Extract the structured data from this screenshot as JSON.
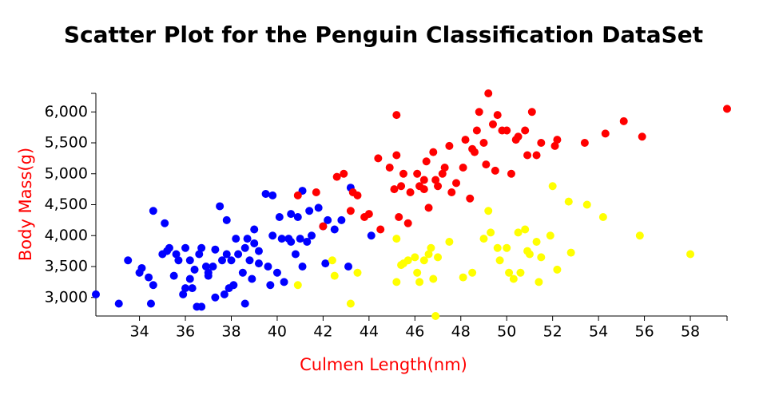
{
  "chart_data": {
    "type": "scatter",
    "title": "Scatter Plot for the Penguin Classification DataSet",
    "x_label": "Culmen Length(nm)",
    "y_label": "Body Mass(g)",
    "label_color": "#ff0000",
    "xlim": [
      32.1,
      59.6
    ],
    "ylim": [
      2700,
      6300
    ],
    "xticks": [
      34,
      36,
      38,
      40,
      42,
      44,
      46,
      48,
      50,
      52,
      54,
      56,
      58
    ],
    "yticks": [
      {
        "value": 3000,
        "label": "3,000"
      },
      {
        "value": 3500,
        "label": "3,500"
      },
      {
        "value": 4000,
        "label": "4,000"
      },
      {
        "value": 4500,
        "label": "4,500"
      },
      {
        "value": 5000,
        "label": "5,000"
      },
      {
        "value": 5500,
        "label": "5,500"
      },
      {
        "value": 6000,
        "label": "6,000"
      }
    ],
    "grid": false,
    "series": [
      {
        "color": "#0000ff",
        "x": [
          32.1,
          33.1,
          33.5,
          34.0,
          34.1,
          34.4,
          34.5,
          34.6,
          34.6,
          35.0,
          35.1,
          35.3,
          35.5,
          35.6,
          35.7,
          35.9,
          36.0,
          36.0,
          36.2,
          36.2,
          36.4,
          36.5,
          36.6,
          36.7,
          36.7,
          36.9,
          37.0,
          37.2,
          37.3,
          37.3,
          37.5,
          37.6,
          37.7,
          37.8,
          37.8,
          37.9,
          38.0,
          38.1,
          38.2,
          38.3,
          38.5,
          38.6,
          38.6,
          38.8,
          38.9,
          39.0,
          39.2,
          39.2,
          39.5,
          39.6,
          39.7,
          39.8,
          39.8,
          40.0,
          40.1,
          40.2,
          40.3,
          40.6,
          40.6,
          40.8,
          40.9,
          41.1,
          41.1,
          41.3,
          41.4,
          41.5,
          41.8,
          42.0,
          42.1,
          42.2,
          42.5,
          42.8,
          43.1,
          43.2,
          44.1,
          39.0,
          37.0,
          38.7,
          36.3,
          40.5,
          41.0,
          35.2
        ],
        "values": [
          3050,
          2900,
          3600,
          3400,
          3475,
          3325,
          2900,
          4400,
          3200,
          3700,
          4200,
          3800,
          3350,
          3700,
          3600,
          3050,
          3800,
          3150,
          3300,
          3600,
          3450,
          2850,
          3700,
          3800,
          2850,
          3500,
          3350,
          3500,
          3000,
          3775,
          4475,
          3600,
          3050,
          3700,
          4250,
          3150,
          3600,
          3200,
          3950,
          3700,
          3400,
          3800,
          2900,
          3600,
          3300,
          3875,
          3750,
          3550,
          4675,
          3500,
          3200,
          4000,
          4650,
          3400,
          4300,
          3950,
          3250,
          3900,
          4350,
          3700,
          4300,
          4725,
          3500,
          3900,
          4400,
          4000,
          4450,
          4150,
          3550,
          4250,
          4100,
          4250,
          3500,
          4775,
          4000,
          4100,
          3400,
          3950,
          3150,
          3950,
          3950,
          3750
        ]
      },
      {
        "color": "#ff0000",
        "x": [
          40.9,
          41.7,
          42.0,
          42.6,
          42.9,
          43.2,
          43.3,
          43.5,
          43.8,
          44.0,
          44.4,
          44.5,
          44.9,
          45.1,
          45.2,
          45.3,
          45.4,
          45.5,
          45.7,
          45.8,
          46.1,
          46.2,
          46.4,
          46.5,
          46.6,
          46.8,
          47.0,
          47.2,
          47.3,
          47.5,
          47.6,
          47.8,
          48.1,
          48.2,
          48.4,
          48.5,
          48.7,
          49.0,
          49.1,
          49.2,
          49.4,
          49.5,
          49.8,
          50.0,
          50.2,
          50.4,
          50.5,
          50.8,
          51.1,
          51.3,
          51.5,
          52.1,
          52.2,
          53.4,
          54.3,
          55.1,
          55.9,
          59.6,
          45.2,
          49.6,
          48.8,
          46.4,
          46.9,
          48.6,
          50.9
        ],
        "values": [
          4650,
          4700,
          4150,
          4950,
          5000,
          4400,
          4700,
          4650,
          4300,
          4350,
          5250,
          4100,
          5100,
          4750,
          5300,
          4300,
          4800,
          5000,
          4200,
          4700,
          5000,
          4800,
          4750,
          5200,
          4450,
          5350,
          4800,
          5000,
          5100,
          5450,
          4700,
          4850,
          5100,
          5550,
          4600,
          5400,
          5700,
          5500,
          5150,
          6300,
          5800,
          5050,
          5700,
          5700,
          5000,
          5550,
          5600,
          5700,
          6000,
          5300,
          5500,
          5450,
          5550,
          5500,
          5650,
          5850,
          5600,
          6050,
          5950,
          5950,
          6000,
          4900,
          4900,
          5350,
          5300
        ]
      },
      {
        "color": "#ffff00",
        "x": [
          40.9,
          42.4,
          42.5,
          43.2,
          43.5,
          45.2,
          45.2,
          45.4,
          45.5,
          45.7,
          46.0,
          46.1,
          46.2,
          46.4,
          46.6,
          46.7,
          46.8,
          46.9,
          47.0,
          47.5,
          48.1,
          48.5,
          49.0,
          49.2,
          49.3,
          49.6,
          49.7,
          50.0,
          50.1,
          50.3,
          50.5,
          50.6,
          50.8,
          51.0,
          51.3,
          51.4,
          51.5,
          51.9,
          52.0,
          52.2,
          52.8,
          53.5,
          54.2,
          55.8,
          58.0,
          52.7,
          50.9
        ],
        "values": [
          3200,
          3600,
          3350,
          2900,
          3400,
          3950,
          3250,
          3525,
          3550,
          3600,
          3650,
          3400,
          3250,
          3600,
          3700,
          3800,
          3300,
          2700,
          3650,
          3900,
          3325,
          3400,
          3950,
          4400,
          4050,
          3800,
          3600,
          3800,
          3400,
          3300,
          4050,
          3400,
          4100,
          3700,
          3900,
          3250,
          3650,
          4000,
          4800,
          3450,
          3725,
          4500,
          4300,
          4000,
          3700,
          4550,
          3750
        ]
      }
    ]
  }
}
